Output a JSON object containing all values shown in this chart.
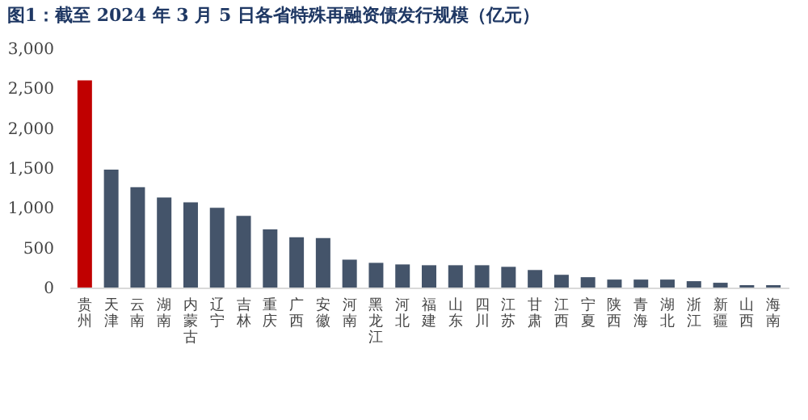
{
  "chart_data": {
    "type": "bar",
    "title": "图1：截至 2024 年 3 月 5 日各省特殊再融资债发行规模（亿元）",
    "categories": [
      "贵州",
      "天津",
      "云南",
      "湖南",
      "内蒙古",
      "辽宁",
      "吉林",
      "重庆",
      "广西",
      "安徽",
      "河南",
      "黑龙江",
      "河北",
      "福建",
      "山东",
      "四川",
      "江苏",
      "甘肃",
      "江西",
      "宁夏",
      "陕西",
      "青海",
      "湖北",
      "浙江",
      "新疆",
      "山西",
      "海南"
    ],
    "values": [
      2600,
      1480,
      1260,
      1130,
      1070,
      1000,
      900,
      730,
      630,
      620,
      350,
      310,
      290,
      280,
      280,
      280,
      260,
      220,
      160,
      130,
      100,
      100,
      100,
      80,
      60,
      30,
      30
    ],
    "colors": [
      "#c00000",
      "#44546a",
      "#44546a",
      "#44546a",
      "#44546a",
      "#44546a",
      "#44546a",
      "#44546a",
      "#44546a",
      "#44546a",
      "#44546a",
      "#44546a",
      "#44546a",
      "#44546a",
      "#44546a",
      "#44546a",
      "#44546a",
      "#44546a",
      "#44546a",
      "#44546a",
      "#44546a",
      "#44546a",
      "#44546a",
      "#44546a",
      "#44546a",
      "#44546a",
      "#44546a"
    ],
    "ylim": [
      0,
      3000
    ],
    "yticks": [
      0,
      {
        "value": 500,
        "label": "500"
      },
      {
        "value": 1000,
        "label": "1,000"
      },
      {
        "value": 1500,
        "label": "1,500"
      },
      {
        "value": 2000,
        "label": "2,000"
      },
      {
        "value": 2500,
        "label": "2,500"
      },
      {
        "value": 3000,
        "label": "3,000"
      }
    ],
    "grid": false
  }
}
